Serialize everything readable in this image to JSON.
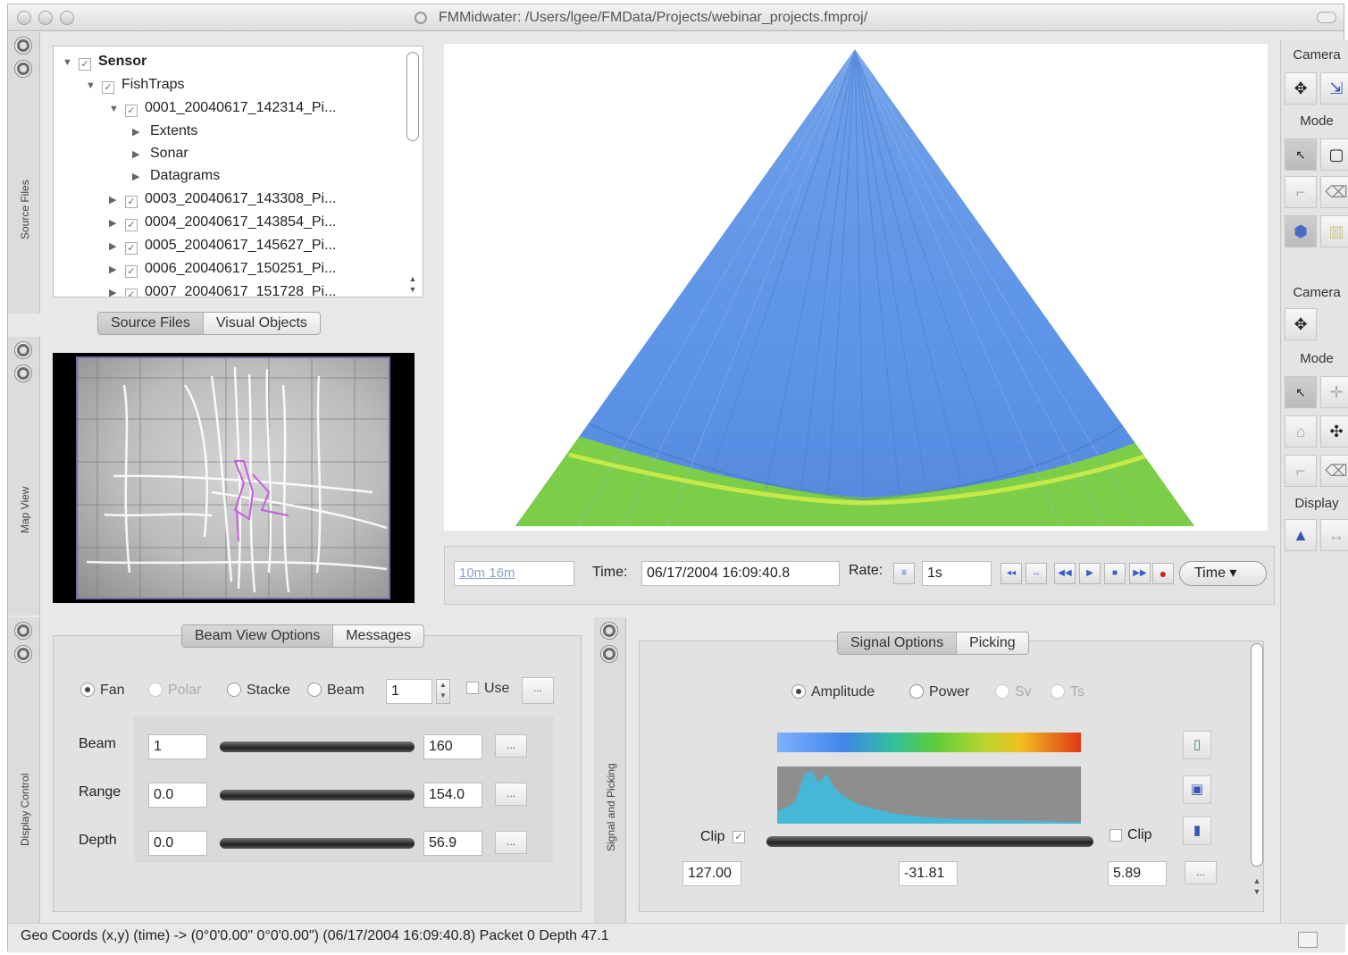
{
  "window": {
    "title": "FMMidwater: /Users/lgee/FMData/Projects/webinar_projects.fmproj/"
  },
  "source_files": {
    "strip_label": "Source Files",
    "tree": [
      {
        "label": "Sensor",
        "checked": true,
        "expanded": true,
        "level": 0
      },
      {
        "label": "FishTraps",
        "checked": true,
        "expanded": true,
        "level": 1
      },
      {
        "label": "0001_20040617_142314_Pi...",
        "checked": true,
        "expanded": true,
        "level": 2
      },
      {
        "label": "Extents",
        "level": 3
      },
      {
        "label": "Sonar",
        "level": 3
      },
      {
        "label": "Datagrams",
        "level": 3
      },
      {
        "label": "0003_20040617_143308_Pi...",
        "checked": true,
        "level": 2
      },
      {
        "label": "0004_20040617_143854_Pi...",
        "checked": true,
        "level": 2
      },
      {
        "label": "0005_20040617_145627_Pi...",
        "checked": true,
        "level": 2
      },
      {
        "label": "0006_20040617_150251_Pi...",
        "checked": true,
        "level": 2
      },
      {
        "label": "0007_20040617_151728_Pi...",
        "checked": true,
        "level": 2
      }
    ],
    "tabs": [
      "Source Files",
      "Visual Objects"
    ]
  },
  "map_view": {
    "strip_label": "Map View"
  },
  "timebar": {
    "range_text": "10m  16m",
    "time_label": "Time:",
    "time_value": "06/17/2004 16:09:40.8",
    "rate_label": "Rate:",
    "rate_value": "1s",
    "time_menu": "Time ▾"
  },
  "tools": {
    "camera_label": "Camera",
    "mode_label": "Mode",
    "camera2_label": "Camera",
    "mode2_label": "Mode",
    "display_label": "Display"
  },
  "display_control": {
    "strip_label": "Display Control",
    "tabs": [
      "Beam View Options",
      "Messages"
    ],
    "radios": [
      {
        "label": "Fan",
        "selected": true,
        "enabled": true
      },
      {
        "label": "Polar",
        "selected": false,
        "enabled": false
      },
      {
        "label": "Stacke",
        "selected": false,
        "enabled": true
      },
      {
        "label": "Beam",
        "selected": false,
        "enabled": true
      }
    ],
    "beam_number": "1",
    "use_label": "Use",
    "more_label": "...",
    "rows": [
      {
        "label": "Beam",
        "min": "1",
        "max": "160"
      },
      {
        "label": "Range",
        "min": "0.0",
        "max": "154.0"
      },
      {
        "label": "Depth",
        "min": "0.0",
        "max": "56.9"
      }
    ]
  },
  "signal": {
    "strip_label": "Signal and Picking",
    "tabs": [
      "Signal Options",
      "Picking"
    ],
    "radios": [
      {
        "label": "Amplitude",
        "selected": true,
        "enabled": true
      },
      {
        "label": "Power",
        "selected": false,
        "enabled": true
      },
      {
        "label": "Sv",
        "selected": false,
        "enabled": false
      },
      {
        "label": "Ts",
        "selected": false,
        "enabled": false
      }
    ],
    "clip_left_label": "Clip",
    "clip_right_label": "Clip",
    "value_left": "127.00",
    "value_mid": "-31.81",
    "value_right": "5.89",
    "more_label": "..."
  },
  "status_bar": {
    "text": "Geo Coords (x,y) (time) -> (0°0'0.00\" 0°0'0.00\")  (06/17/2004 16:09:40.8)  Packet 0 Depth    47.1"
  },
  "colors": {
    "sonar_blue": "#5b93e6",
    "sonar_green": "#7fd23a",
    "histogram_fill": "#46b7d6"
  }
}
